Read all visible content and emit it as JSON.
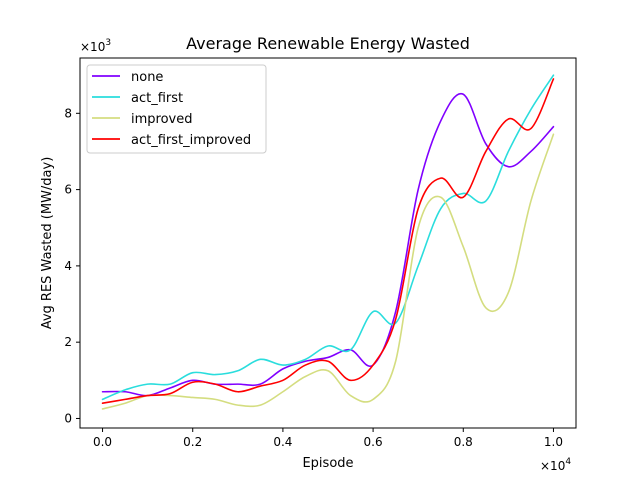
{
  "chart_data": {
    "type": "line",
    "title": "Average Renewable Energy Wasted",
    "xlabel": "Episode",
    "ylabel": "Avg RES Wasted (MW/day)",
    "x_multiplier": {
      "base": "×10",
      "exp": "4"
    },
    "y_multiplier": {
      "base": "×10",
      "exp": "3"
    },
    "xlim": [
      -0.05,
      1.05
    ],
    "ylim": [
      -0.25,
      9.45
    ],
    "x_ticks": [
      0.0,
      0.2,
      0.4,
      0.6,
      0.8,
      1.0
    ],
    "x_tick_labels": [
      "0.0",
      "0.2",
      "0.4",
      "0.6",
      "0.8",
      "1.0"
    ],
    "y_ticks": [
      0,
      2,
      4,
      6,
      8
    ],
    "y_tick_labels": [
      "0",
      "2",
      "4",
      "6",
      "8"
    ],
    "grid": false,
    "legend_position": "upper-left",
    "x": [
      0.0,
      0.05,
      0.1,
      0.15,
      0.2,
      0.25,
      0.3,
      0.35,
      0.4,
      0.45,
      0.5,
      0.55,
      0.6,
      0.65,
      0.7,
      0.75,
      0.8,
      0.85,
      0.9,
      0.95,
      1.0
    ],
    "series": [
      {
        "name": "none",
        "color": "#8000ff",
        "values": [
          0.7,
          0.7,
          0.6,
          0.8,
          1.0,
          0.9,
          0.9,
          0.9,
          1.3,
          1.5,
          1.6,
          1.8,
          1.4,
          2.8,
          6.0,
          7.8,
          8.5,
          7.2,
          6.6,
          7.0,
          7.65
        ]
      },
      {
        "name": "act_first",
        "color": "#2adddd",
        "values": [
          0.5,
          0.75,
          0.9,
          0.9,
          1.2,
          1.15,
          1.25,
          1.55,
          1.4,
          1.55,
          1.9,
          1.8,
          2.8,
          2.5,
          4.0,
          5.5,
          5.9,
          5.7,
          7.0,
          8.1,
          9.0
        ]
      },
      {
        "name": "improved",
        "color": "#d4dd80",
        "values": [
          0.25,
          0.4,
          0.6,
          0.6,
          0.55,
          0.5,
          0.35,
          0.35,
          0.7,
          1.1,
          1.25,
          0.6,
          0.5,
          1.5,
          5.0,
          5.8,
          4.5,
          2.9,
          3.3,
          5.7,
          7.45
        ]
      },
      {
        "name": "act_first_improved",
        "color": "#ff0000",
        "values": [
          0.4,
          0.5,
          0.6,
          0.65,
          0.95,
          0.9,
          0.7,
          0.85,
          1.0,
          1.4,
          1.5,
          1.0,
          1.4,
          2.6,
          5.5,
          6.3,
          5.8,
          7.0,
          7.85,
          7.6,
          8.9
        ]
      }
    ]
  }
}
